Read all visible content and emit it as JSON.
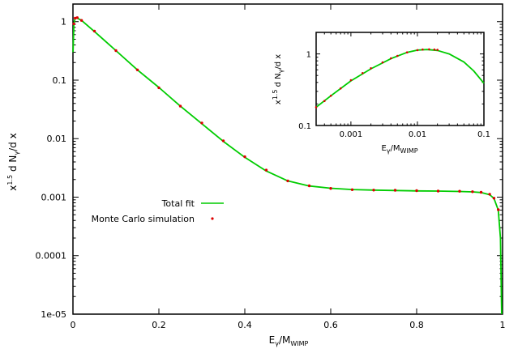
{
  "chart_data": [
    {
      "type": "line",
      "xlabel": "Eγ/MWIMP",
      "ylabel": "x^1.5 d Nγ/d x",
      "xlim": [
        0,
        1
      ],
      "ylim": [
        1e-05,
        2
      ],
      "yscale": "log",
      "grid": false,
      "legend_position": "center-left",
      "x_tick_labels": [
        "0",
        "0.2",
        "0.4",
        "0.6",
        "0.8",
        "1"
      ],
      "x_tick_values": [
        0,
        0.2,
        0.4,
        0.6,
        0.8,
        1
      ],
      "y_tick_labels": [
        "1e-05",
        "0.0001",
        "0.001",
        "0.01",
        "0.1",
        "1"
      ],
      "y_tick_values": [
        1e-05,
        0.0001,
        0.001,
        0.01,
        0.1,
        1
      ],
      "series": [
        {
          "name": "Total fit",
          "style": "line",
          "color": "#00cc00",
          "x": [
            0.0002,
            0.002,
            0.005,
            0.01,
            0.02,
            0.05,
            0.1,
            0.15,
            0.2,
            0.25,
            0.3,
            0.35,
            0.4,
            0.45,
            0.5,
            0.55,
            0.6,
            0.65,
            0.7,
            0.75,
            0.8,
            0.85,
            0.9,
            0.93,
            0.95,
            0.97,
            0.98,
            0.99,
            0.995,
            0.998
          ],
          "y": [
            0.3,
            0.9,
            1.15,
            1.15,
            1.05,
            0.68,
            0.32,
            0.15,
            0.075,
            0.036,
            0.018,
            0.009,
            0.0048,
            0.0028,
            0.0019,
            0.00155,
            0.00142,
            0.00135,
            0.00132,
            0.0013,
            0.00128,
            0.00127,
            0.00125,
            0.00123,
            0.0012,
            0.0011,
            0.00095,
            0.0006,
            0.0002,
            1e-05
          ]
        },
        {
          "name": "Monte Carlo simulation",
          "style": "points",
          "color": "#dd0000",
          "x": [
            0.002,
            0.005,
            0.01,
            0.02,
            0.05,
            0.1,
            0.15,
            0.2,
            0.25,
            0.3,
            0.35,
            0.4,
            0.45,
            0.5,
            0.55,
            0.6,
            0.65,
            0.7,
            0.75,
            0.8,
            0.85,
            0.9,
            0.93,
            0.95,
            0.97,
            0.98,
            0.99
          ],
          "y": [
            0.92,
            1.15,
            1.17,
            1.05,
            0.69,
            0.32,
            0.15,
            0.074,
            0.036,
            0.0185,
            0.0092,
            0.0049,
            0.0029,
            0.0019,
            0.00156,
            0.00141,
            0.00134,
            0.00132,
            0.00131,
            0.00129,
            0.00127,
            0.00126,
            0.00124,
            0.00121,
            0.00112,
            0.00096,
            0.00061
          ]
        }
      ]
    },
    {
      "type": "line",
      "xlabel": "Eγ/MWIMP",
      "ylabel": "x^1.5 d Nγ/d x",
      "xscale": "log",
      "yscale": "log",
      "xlim": [
        0.0003,
        0.1
      ],
      "ylim": [
        0.1,
        2
      ],
      "grid": false,
      "x_tick_labels": [
        "0.001",
        "0.01",
        "0.1"
      ],
      "x_tick_values": [
        0.001,
        0.01,
        0.1
      ],
      "y_tick_labels": [
        "0.1",
        "1"
      ],
      "y_tick_values": [
        0.1,
        1
      ],
      "series": [
        {
          "name": "Total fit",
          "style": "line",
          "color": "#00cc00",
          "x": [
            0.0003,
            0.0005,
            0.001,
            0.002,
            0.004,
            0.007,
            0.01,
            0.014,
            0.02,
            0.03,
            0.05,
            0.07,
            0.1
          ],
          "y": [
            0.18,
            0.26,
            0.42,
            0.62,
            0.86,
            1.05,
            1.13,
            1.15,
            1.12,
            1.0,
            0.77,
            0.58,
            0.39
          ]
        },
        {
          "name": "Monte Carlo simulation",
          "style": "points",
          "color": "#dd0000",
          "x": [
            0.0003,
            0.0004,
            0.0005,
            0.0007,
            0.001,
            0.0015,
            0.002,
            0.003,
            0.004,
            0.005,
            0.007,
            0.01,
            0.012,
            0.015,
            0.018,
            0.02
          ],
          "y": [
            0.18,
            0.22,
            0.26,
            0.33,
            0.43,
            0.54,
            0.63,
            0.76,
            0.87,
            0.94,
            1.05,
            1.13,
            1.15,
            1.16,
            1.15,
            1.14
          ]
        }
      ]
    }
  ]
}
